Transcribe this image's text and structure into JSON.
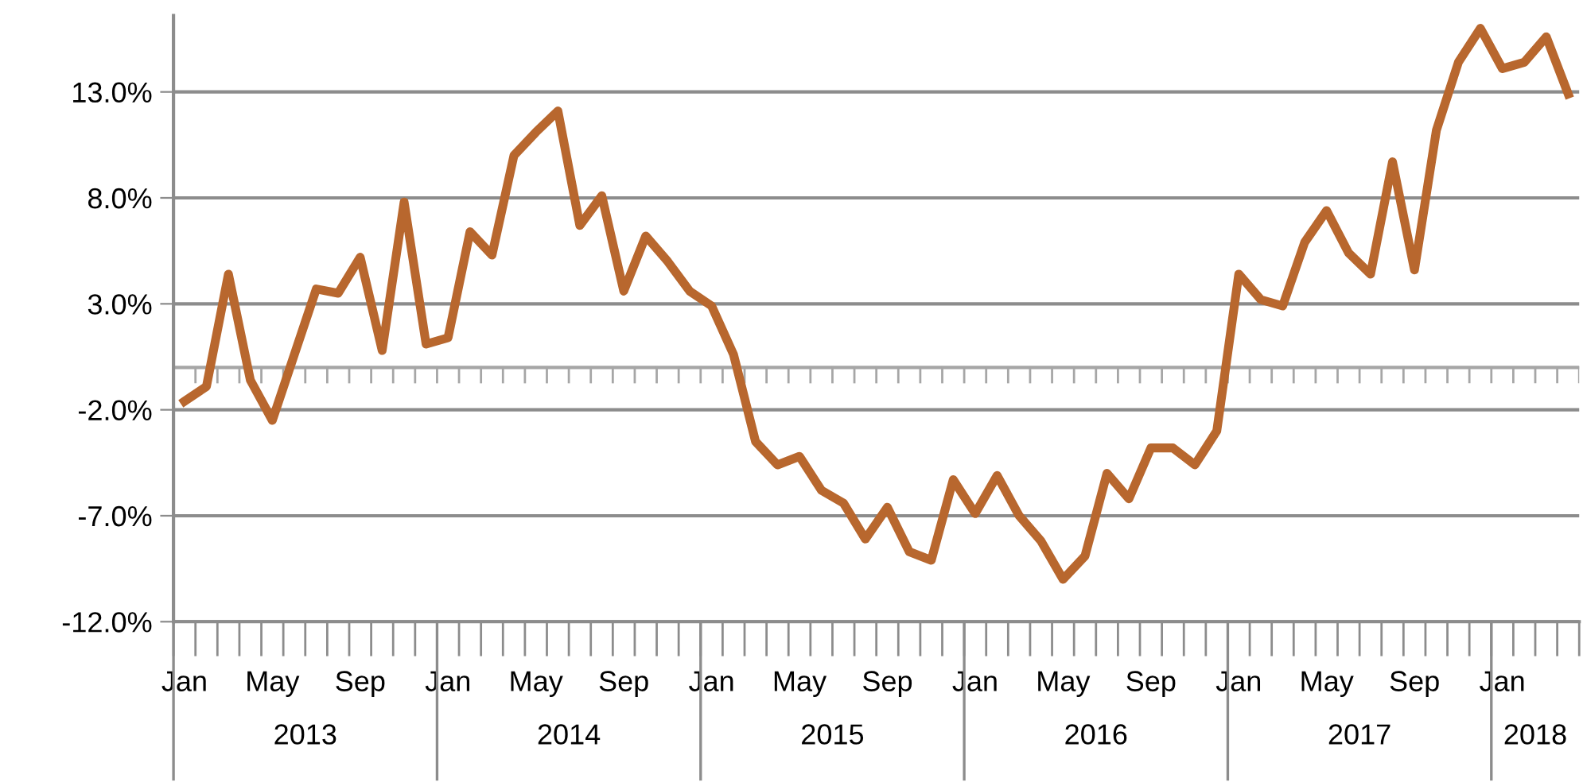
{
  "chart_data": {
    "type": "line",
    "categories": [
      "Jan",
      null,
      null,
      null,
      "May",
      null,
      null,
      null,
      "Sep",
      null,
      null,
      null,
      "Jan",
      null,
      null,
      null,
      "May",
      null,
      null,
      null,
      "Sep",
      null,
      null,
      null,
      "Jan",
      null,
      null,
      null,
      "May",
      null,
      null,
      null,
      "Sep",
      null,
      null,
      null,
      "Jan",
      null,
      null,
      null,
      "May",
      null,
      null,
      null,
      "Sep",
      null,
      null,
      null,
      "Jan",
      null,
      null,
      null,
      "May",
      null,
      null,
      null,
      "Sep",
      null,
      null,
      null,
      "Jan",
      null,
      null,
      null
    ],
    "series": [
      {
        "color": "#b8672e",
        "values": [
          -1.6,
          -0.9,
          4.4,
          -0.6,
          -2.5,
          0.6,
          3.7,
          3.5,
          5.2,
          0.8,
          7.8,
          1.1,
          1.4,
          6.4,
          5.3,
          10.0,
          11.1,
          12.1,
          6.7,
          8.1,
          3.6,
          6.2,
          5.0,
          3.6,
          2.9,
          0.6,
          -3.5,
          -4.6,
          -4.2,
          -5.8,
          -6.4,
          -8.1,
          -6.6,
          -8.7,
          -9.1,
          -5.3,
          -6.9,
          -5.1,
          -7.0,
          -8.2,
          -10.0,
          -8.9,
          -5.0,
          -6.2,
          -3.8,
          -3.8,
          -4.6,
          -3.0,
          4.4,
          3.2,
          2.9,
          5.9,
          7.4,
          5.4,
          4.4,
          9.7,
          4.6,
          11.2,
          14.4,
          16.0,
          14.1,
          14.4,
          15.6,
          12.9
        ]
      }
    ],
    "annotations": [
      "2013",
      "2014",
      "2015",
      "2016",
      "2017",
      "2018"
    ],
    "ylim": [
      -12,
      16.6
    ],
    "yticks": [
      {
        "value": -12,
        "label": "-12.0%"
      },
      {
        "value": -7,
        "label": "-7.0%"
      },
      {
        "value": -2,
        "label": "-2.0%"
      },
      {
        "value": 3,
        "label": "3.0%"
      },
      {
        "value": 8,
        "label": "8.0%"
      },
      {
        "value": 13,
        "label": "13.0%"
      }
    ],
    "ref_lines": [
      {
        "axis": "y",
        "value": 0,
        "color": "#a6a6a6"
      }
    ],
    "grid": "y",
    "legend": false,
    "marker": "none",
    "line_style": "solid"
  }
}
